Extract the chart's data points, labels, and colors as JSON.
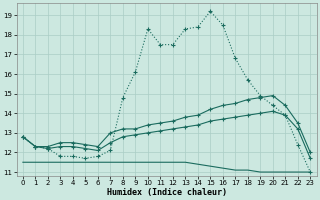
{
  "xlabel": "Humidex (Indice chaleur)",
  "bg_color": "#cce8e0",
  "grid_color": "#aacec6",
  "line_color": "#1a6b5e",
  "xlim": [
    -0.5,
    23.5
  ],
  "ylim": [
    10.8,
    19.6
  ],
  "yticks": [
    11,
    12,
    13,
    14,
    15,
    16,
    17,
    18,
    19
  ],
  "xticks": [
    0,
    1,
    2,
    3,
    4,
    5,
    6,
    7,
    8,
    9,
    10,
    11,
    12,
    13,
    14,
    15,
    16,
    17,
    18,
    19,
    20,
    21,
    22,
    23
  ],
  "line1_x": [
    0,
    1,
    2,
    3,
    4,
    5,
    6,
    7,
    8,
    9,
    10,
    11,
    12,
    13,
    14,
    15,
    16,
    17,
    18,
    19,
    20,
    21,
    22,
    23
  ],
  "line1_y": [
    12.8,
    12.3,
    12.2,
    11.8,
    11.8,
    11.7,
    11.8,
    12.1,
    14.8,
    16.1,
    18.3,
    17.5,
    17.5,
    18.3,
    18.4,
    19.2,
    18.5,
    16.8,
    15.7,
    14.9,
    14.4,
    13.9,
    12.4,
    11.0
  ],
  "line2_x": [
    0,
    1,
    2,
    3,
    4,
    5,
    6,
    7,
    8,
    9,
    10,
    11,
    12,
    13,
    14,
    15,
    16,
    17,
    18,
    19,
    20,
    21,
    22,
    23
  ],
  "line2_y": [
    12.8,
    12.3,
    12.3,
    12.5,
    12.5,
    12.4,
    12.3,
    13.0,
    13.2,
    13.2,
    13.4,
    13.5,
    13.6,
    13.8,
    13.9,
    14.2,
    14.4,
    14.5,
    14.7,
    14.8,
    14.9,
    14.4,
    13.5,
    12.0
  ],
  "line3_x": [
    0,
    1,
    2,
    3,
    4,
    5,
    6,
    7,
    8,
    9,
    10,
    11,
    12,
    13,
    14,
    15,
    16,
    17,
    18,
    19,
    20,
    21,
    22,
    23
  ],
  "line3_y": [
    12.8,
    12.3,
    12.2,
    12.3,
    12.3,
    12.2,
    12.1,
    12.5,
    12.8,
    12.9,
    13.0,
    13.1,
    13.2,
    13.3,
    13.4,
    13.6,
    13.7,
    13.8,
    13.9,
    14.0,
    14.1,
    13.9,
    13.2,
    11.7
  ],
  "line4_x": [
    0,
    1,
    2,
    3,
    4,
    5,
    6,
    7,
    8,
    9,
    10,
    11,
    12,
    13,
    14,
    15,
    16,
    17,
    18,
    19,
    20,
    21,
    22,
    23
  ],
  "line4_y": [
    11.5,
    11.5,
    11.5,
    11.5,
    11.5,
    11.5,
    11.5,
    11.5,
    11.5,
    11.5,
    11.5,
    11.5,
    11.5,
    11.5,
    11.4,
    11.3,
    11.2,
    11.1,
    11.1,
    11.0,
    11.0,
    11.0,
    11.0,
    11.0
  ]
}
